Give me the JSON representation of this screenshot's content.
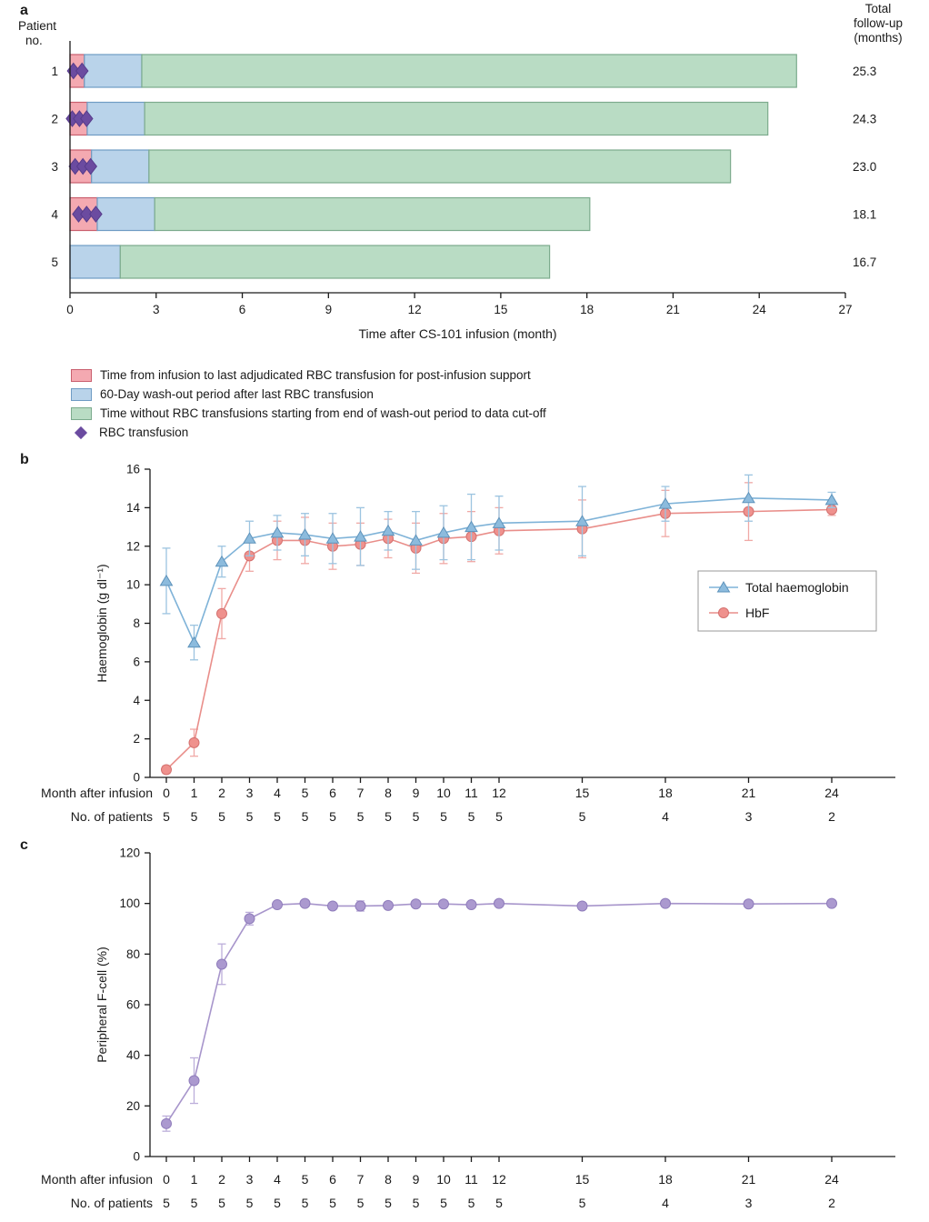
{
  "figure": {
    "panel_a_label": "a",
    "panel_b_label": "b",
    "panel_c_label": "c"
  },
  "colors": {
    "support_fill": "#f4a9b1",
    "support_stroke": "#c95f6e",
    "washout_fill": "#b9d3ea",
    "washout_stroke": "#6f9cc4",
    "free_fill": "#b9dcc4",
    "free_stroke": "#7cab8d",
    "diamond": "#6b4ba0",
    "diamond_stroke": "#563b8b",
    "axis": "#1a1a1a"
  },
  "chart_data": [
    {
      "id": "panel_a",
      "type": "bar",
      "orientation": "horizontal-stacked-timeline",
      "xlabel": "Time after CS-101 infusion (month)",
      "ylabel_lines": [
        "Patient",
        "no."
      ],
      "right_header_lines": [
        "Total",
        "follow-up",
        "(months)"
      ],
      "xlim": [
        0,
        27
      ],
      "xticks": [
        0,
        3,
        6,
        9,
        12,
        15,
        18,
        21,
        24,
        27
      ],
      "patients": [
        {
          "no": "1",
          "support_end": 0.5,
          "washout_end": 2.5,
          "total": 25.3,
          "transfusions": [
            0.12,
            0.42
          ],
          "followup_label": "25.3"
        },
        {
          "no": "2",
          "support_end": 0.6,
          "washout_end": 2.6,
          "total": 24.3,
          "transfusions": [
            0.08,
            0.33,
            0.58
          ],
          "followup_label": "24.3"
        },
        {
          "no": "3",
          "support_end": 0.75,
          "washout_end": 2.75,
          "total": 23.0,
          "transfusions": [
            0.18,
            0.45,
            0.72
          ],
          "followup_label": "23.0"
        },
        {
          "no": "4",
          "support_end": 0.95,
          "washout_end": 2.95,
          "total": 18.1,
          "transfusions": [
            0.3,
            0.58,
            0.9
          ],
          "followup_label": "18.1"
        },
        {
          "no": "5",
          "support_end": 0,
          "washout_end": 1.75,
          "total": 16.7,
          "transfusions": [],
          "followup_label": "16.7"
        }
      ],
      "legend": [
        {
          "swatch": "pink",
          "label": "Time from infusion to last adjudicated RBC transfusion for post-infusion support"
        },
        {
          "swatch": "blue",
          "label": "60-Day wash-out period after last RBC transfusion"
        },
        {
          "swatch": "green",
          "label": "Time without RBC transfusions starting from end of wash-out period to data cut-off"
        },
        {
          "swatch": "diamond",
          "label": "RBC transfusion"
        }
      ]
    },
    {
      "id": "panel_b",
      "type": "line",
      "ylabel": "Haemoglobin (g dl⁻¹)",
      "ylim": [
        0,
        16
      ],
      "yticks": [
        0,
        2,
        4,
        6,
        8,
        10,
        12,
        14,
        16
      ],
      "x": [
        0,
        1,
        2,
        3,
        4,
        5,
        6,
        7,
        8,
        9,
        10,
        11,
        12,
        15,
        18,
        21,
        24
      ],
      "series": [
        {
          "name": "Total haemoglobin",
          "marker": "triangle",
          "color": "#7fb3d8",
          "fill": "#8cbbdd",
          "stroke": "#5e93bb",
          "err_color": "#9cc4e0",
          "values": [
            10.2,
            7.0,
            11.2,
            12.4,
            12.7,
            12.6,
            12.4,
            12.5,
            12.8,
            12.3,
            12.7,
            13.0,
            13.2,
            13.3,
            14.2,
            14.5,
            14.4
          ],
          "errors": [
            1.7,
            0.9,
            0.8,
            0.9,
            0.9,
            1.1,
            1.3,
            1.5,
            1.0,
            1.5,
            1.4,
            1.7,
            1.4,
            1.8,
            0.9,
            1.2,
            0.4
          ]
        },
        {
          "name": "HbF",
          "marker": "circle",
          "color": "#e98e8a",
          "fill": "#ef918d",
          "stroke": "#d4716f",
          "err_color": "#f0a9a6",
          "values": [
            0.4,
            1.8,
            8.5,
            11.5,
            12.3,
            12.3,
            12.0,
            12.1,
            12.4,
            11.9,
            12.4,
            12.5,
            12.8,
            12.9,
            13.7,
            13.8,
            13.9
          ],
          "errors": [
            0.2,
            0.7,
            1.3,
            0.8,
            1.0,
            1.2,
            1.2,
            1.1,
            1.0,
            1.3,
            1.3,
            1.3,
            1.2,
            1.5,
            1.2,
            1.5,
            0.3
          ]
        }
      ],
      "legend_position": "right",
      "month_row_label": "Month after infusion",
      "patients_row_label": "No. of patients",
      "patients_row": [
        "5",
        "5",
        "5",
        "5",
        "5",
        "5",
        "5",
        "5",
        "5",
        "5",
        "5",
        "5",
        "5",
        "5",
        "4",
        "3",
        "2"
      ]
    },
    {
      "id": "panel_c",
      "type": "line",
      "ylabel": "Peripheral F-cell (%)",
      "ylim": [
        0,
        120
      ],
      "yticks": [
        0,
        20,
        40,
        60,
        80,
        100,
        120
      ],
      "x": [
        0,
        1,
        2,
        3,
        4,
        5,
        6,
        7,
        8,
        9,
        10,
        11,
        12,
        15,
        18,
        21,
        24
      ],
      "series": [
        {
          "name": "Peripheral F-cell",
          "marker": "circle",
          "color": "#a795cb",
          "fill": "#ab99cf",
          "stroke": "#8f7cbb",
          "err_color": "#bcaeda",
          "values": [
            13,
            30,
            76,
            94,
            99.5,
            100,
            99,
            99,
            99.2,
            99.8,
            99.8,
            99.5,
            100,
            99,
            100,
            99.8,
            100
          ],
          "errors": [
            3,
            9,
            8,
            2.5,
            1,
            0.5,
            0.8,
            2,
            0.8,
            0.4,
            0.4,
            0.6,
            0.4,
            0.6,
            0.4,
            0.4,
            0.4
          ]
        }
      ],
      "month_row_label": "Month after infusion",
      "patients_row_label": "No. of patients",
      "patients_row": [
        "5",
        "5",
        "5",
        "5",
        "5",
        "5",
        "5",
        "5",
        "5",
        "5",
        "5",
        "5",
        "5",
        "5",
        "4",
        "3",
        "2"
      ]
    }
  ]
}
